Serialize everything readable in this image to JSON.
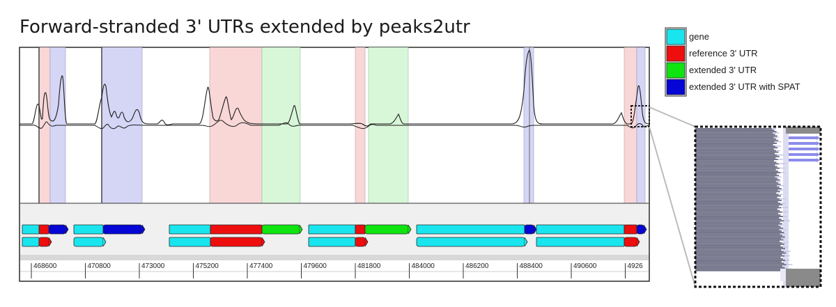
{
  "title": "Forward-stranded 3' UTRs extended by peaks2utr",
  "legend": {
    "items": [
      {
        "label": "gene",
        "color": "#19e5ee"
      },
      {
        "label": "reference 3' UTR",
        "color": "#ee0e0e"
      },
      {
        "label": "extended 3' UTR",
        "color": "#10e410"
      },
      {
        "label": "extended 3' UTR with SPAT",
        "color": "#0505d6"
      }
    ]
  },
  "axis": {
    "ticks": [
      "468600",
      "470800",
      "473000",
      "475200",
      "477400",
      "479600",
      "481800",
      "484000",
      "486200",
      "488400",
      "490600",
      "4926"
    ]
  },
  "colors": {
    "frame": "#2a2a2a",
    "track_bg": "#f0f0f0",
    "shade_red": "#f9d7d7",
    "shade_blue": "#d5d6f6",
    "shade_green": "#d8f6d8",
    "inset_bar": "#6e6e85"
  }
}
